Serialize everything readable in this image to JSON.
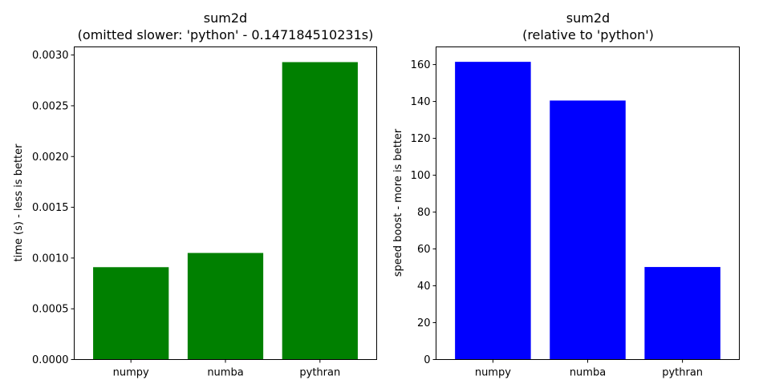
{
  "chart_data": [
    {
      "type": "bar",
      "title": "sum2d",
      "subtitle": "(omitted slower: 'python' - 0.147184510231s)",
      "xlabel": "",
      "ylabel": "time (s) - less is better",
      "categories": [
        "numpy",
        "numba",
        "pythran"
      ],
      "values": [
        0.00091,
        0.00105,
        0.00293
      ],
      "ylim": [
        0,
        0.00308
      ],
      "yticks": [
        0,
        0.0005,
        0.001,
        0.0015,
        0.002,
        0.0025,
        0.003
      ],
      "ytick_labels": [
        "0.0000",
        "0.0005",
        "0.0010",
        "0.0015",
        "0.0020",
        "0.0025",
        "0.0030"
      ],
      "bar_color": "#008000",
      "grid": false
    },
    {
      "type": "bar",
      "title": "sum2d",
      "subtitle": "(relative to 'python')",
      "xlabel": "",
      "ylabel": "speed boost - more is better",
      "categories": [
        "numpy",
        "numba",
        "pythran"
      ],
      "values": [
        161.5,
        140.5,
        50.2
      ],
      "ylim": [
        0,
        169.6
      ],
      "yticks": [
        0,
        20,
        40,
        60,
        80,
        100,
        120,
        140,
        160
      ],
      "ytick_labels": [
        "0",
        "20",
        "40",
        "60",
        "80",
        "100",
        "120",
        "140",
        "160"
      ],
      "bar_color": "#0000ff",
      "grid": false
    }
  ]
}
